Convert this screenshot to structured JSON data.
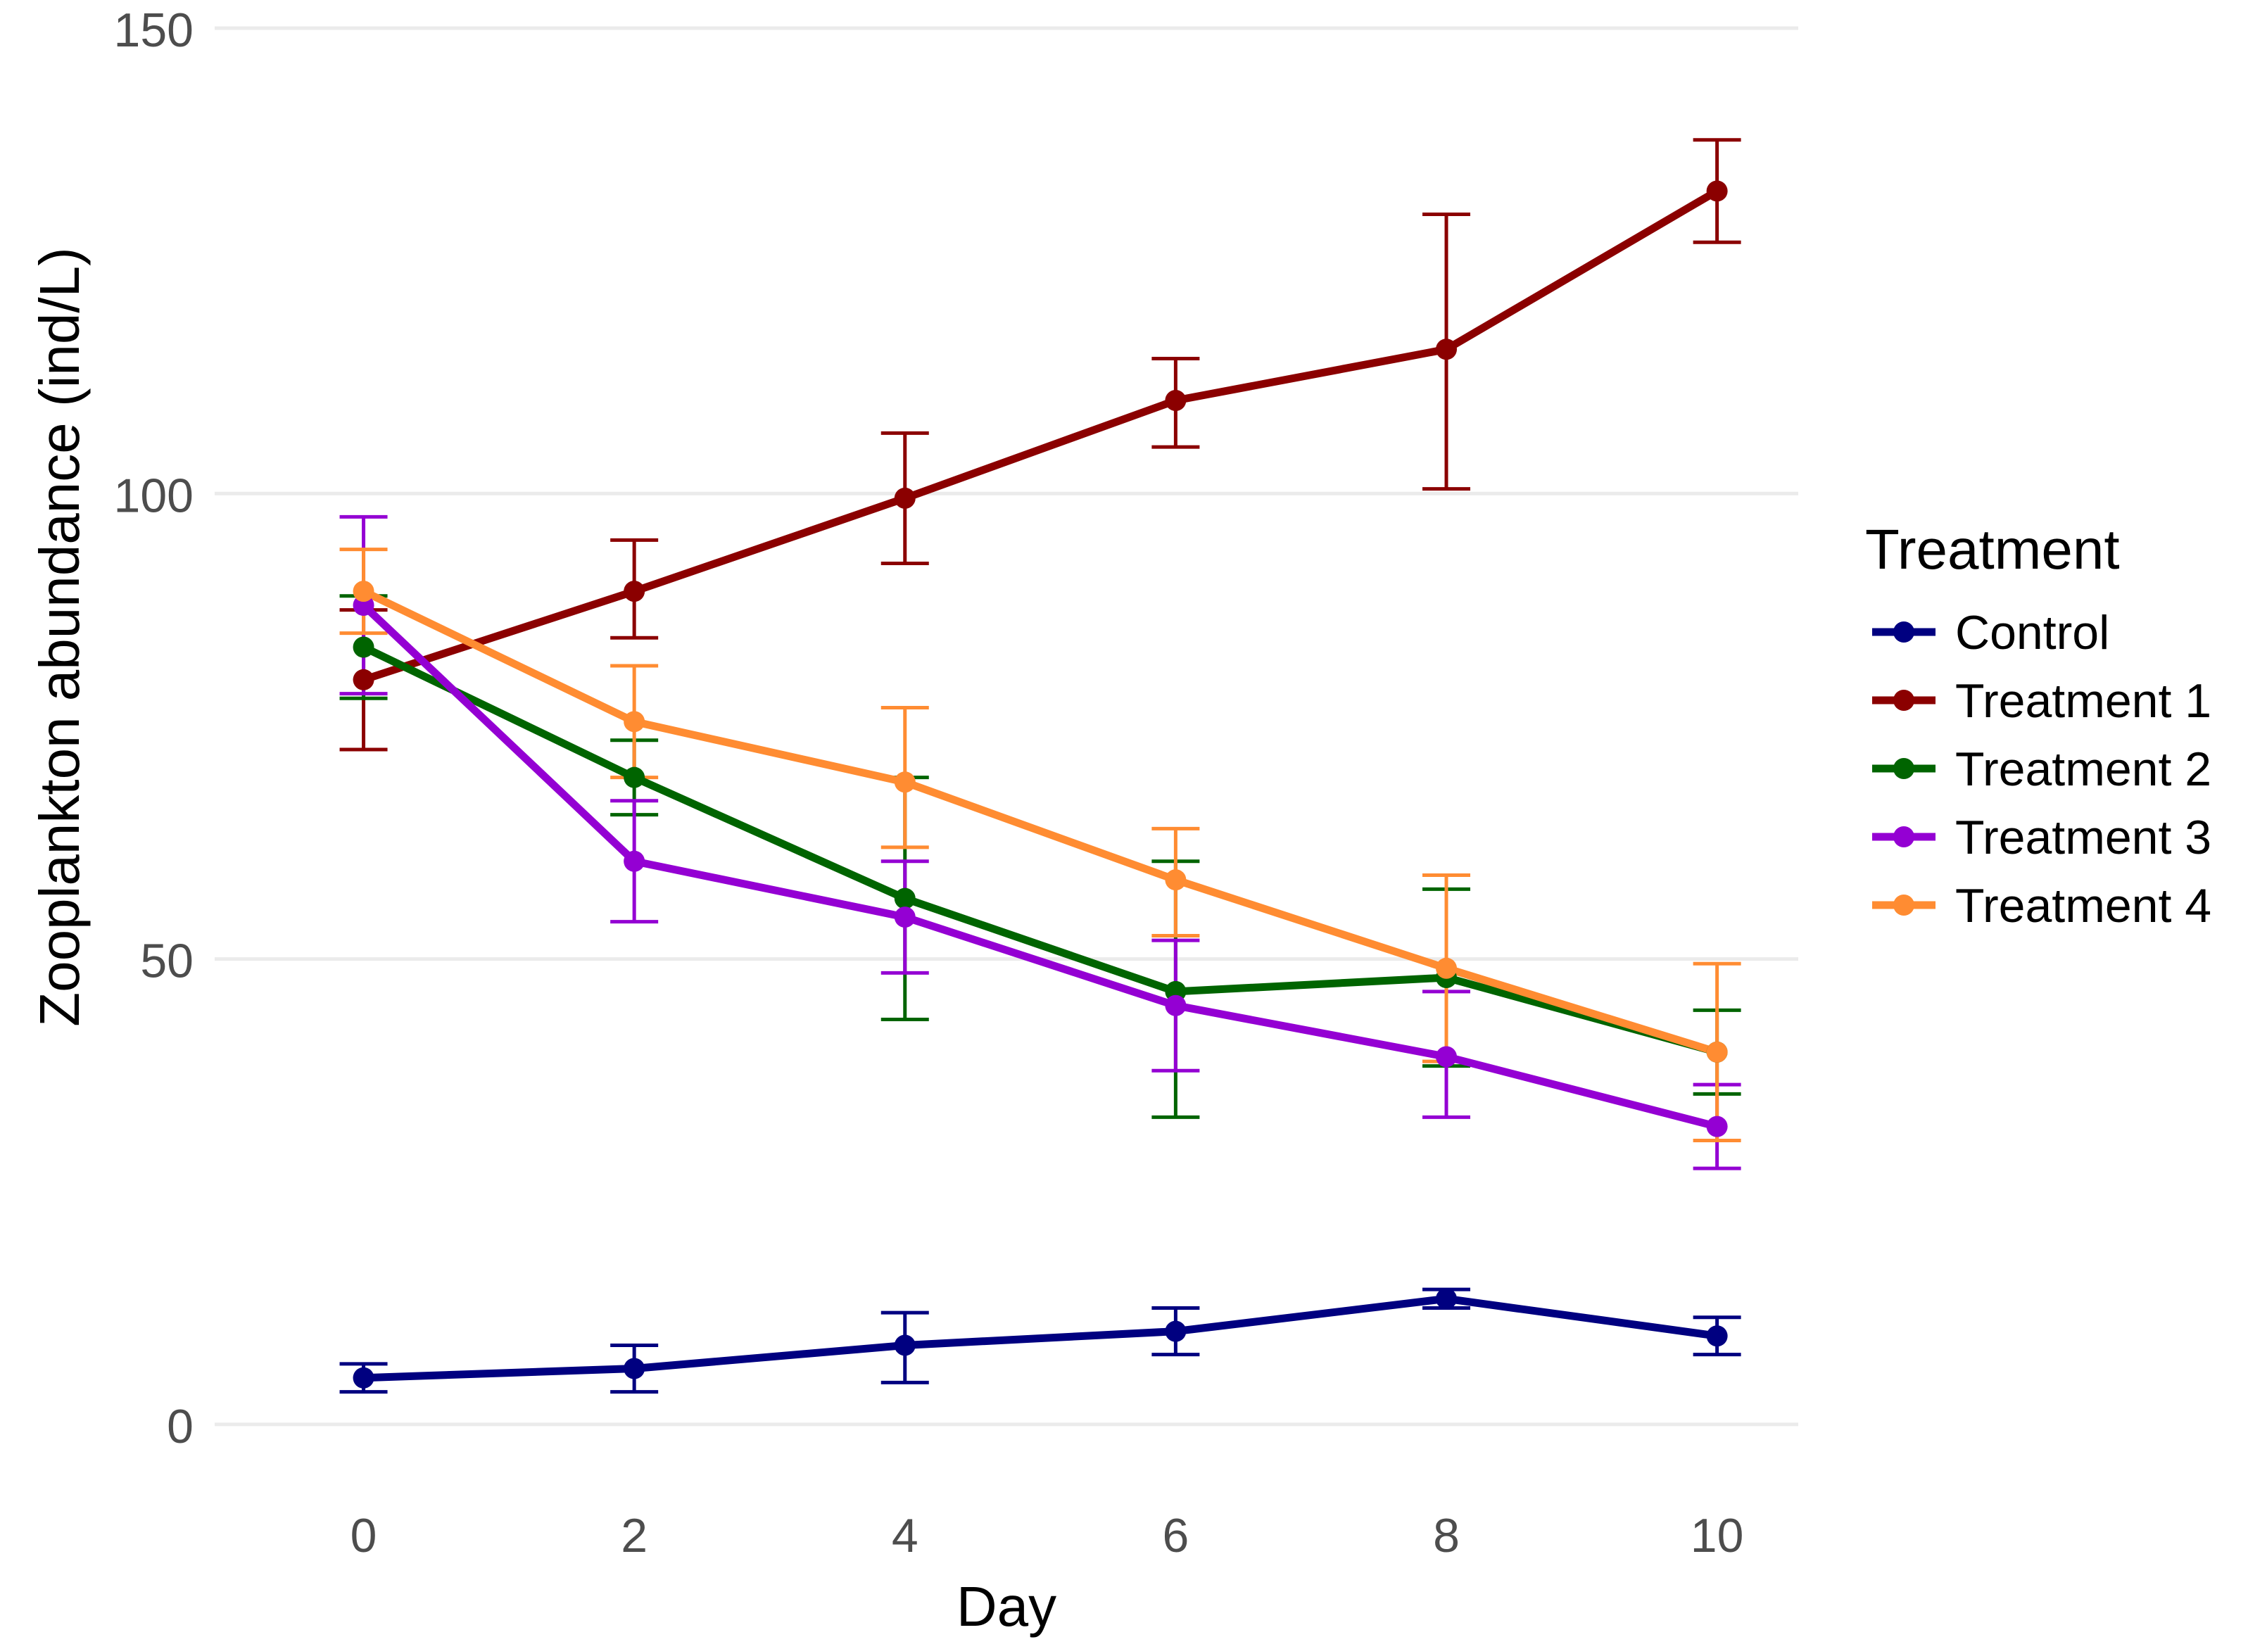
{
  "chart_data": {
    "type": "line",
    "title": "",
    "xlabel": "Day",
    "ylabel": "Zooplankton abundance (ind/L)",
    "x": [
      0,
      2,
      4,
      6,
      8,
      10
    ],
    "x_ticks": [
      0,
      2,
      4,
      6,
      8,
      10
    ],
    "y_ticks": [
      0,
      50,
      100,
      150
    ],
    "xlim": [
      -1.1,
      10.6
    ],
    "ylim": [
      -5,
      150
    ],
    "grid": true,
    "legend": {
      "title": "Treatment",
      "position": "right"
    },
    "series": [
      {
        "name": "Control",
        "color": "#000080",
        "values": [
          5,
          6,
          8.5,
          10,
          13.5,
          9.5
        ],
        "error_low": [
          3.5,
          3.5,
          4.5,
          7.5,
          12.5,
          7.5
        ],
        "error_high": [
          6.5,
          8.5,
          12,
          12.5,
          14.5,
          11.5
        ]
      },
      {
        "name": "Treatment 1",
        "color": "#8B0000",
        "values": [
          80,
          89.5,
          99.5,
          110,
          115.5,
          132.5
        ],
        "error_low": [
          72.5,
          84.5,
          92.5,
          105,
          100.5,
          127
        ],
        "error_high": [
          87.5,
          95,
          106.5,
          114.5,
          130,
          138
        ]
      },
      {
        "name": "Treatment 2",
        "color": "#006400",
        "values": [
          83.5,
          69.5,
          56.5,
          46.5,
          48,
          40
        ],
        "error_low": [
          78,
          65.5,
          43.5,
          33,
          38.5,
          35.5
        ],
        "error_high": [
          89,
          73.5,
          69.5,
          60.5,
          57.5,
          44.5
        ]
      },
      {
        "name": "Treatment 3",
        "color": "#9400D3",
        "values": [
          88,
          60.5,
          54.5,
          45,
          39.5,
          32
        ],
        "error_low": [
          78.5,
          54,
          48.5,
          38,
          33,
          27.5
        ],
        "error_high": [
          97.5,
          67,
          60.5,
          52,
          46.5,
          36.5
        ]
      },
      {
        "name": "Treatment 4",
        "color": "#FF8C32",
        "values": [
          89.5,
          75.5,
          69,
          58.5,
          49,
          40
        ],
        "error_low": [
          85,
          69.5,
          62,
          52.5,
          39,
          30.5
        ],
        "error_high": [
          94,
          81.5,
          77,
          64,
          59,
          49.5
        ]
      }
    ]
  }
}
